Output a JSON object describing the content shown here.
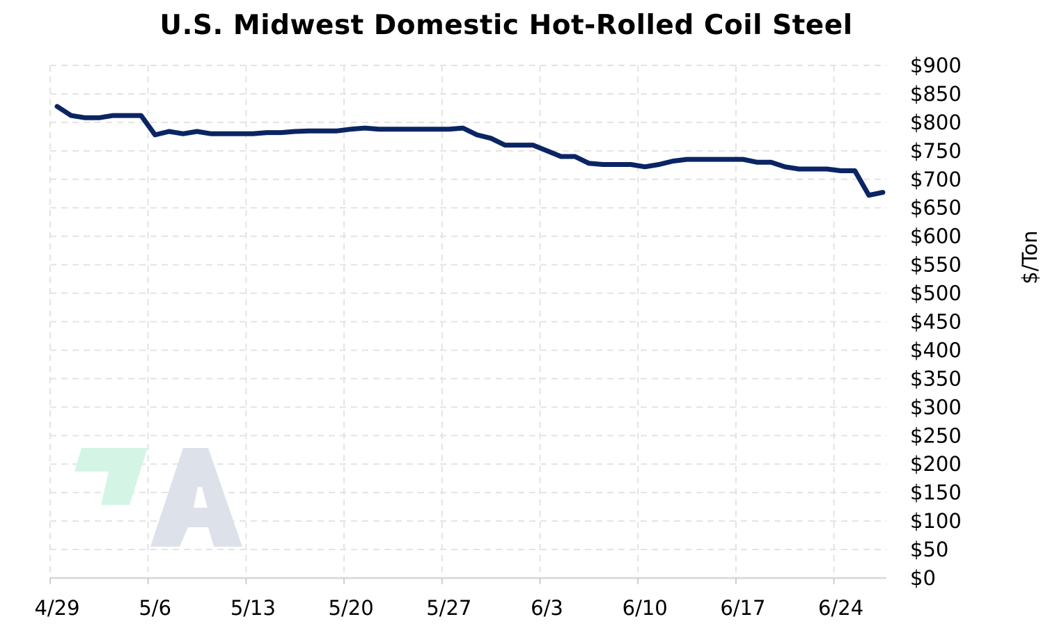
{
  "chart_data": {
    "type": "line",
    "title": "U.S. Midwest Domestic Hot-Rolled Coil Steel",
    "xlabel": "",
    "ylabel": "$/Ton",
    "y_axis_position": "right",
    "ylim": [
      0,
      900
    ],
    "y_ticks": [
      0,
      50,
      100,
      150,
      200,
      250,
      300,
      350,
      400,
      450,
      500,
      550,
      600,
      650,
      700,
      750,
      800,
      850,
      900
    ],
    "y_tick_labels": [
      "$0",
      "$50",
      "$100",
      "$150",
      "$200",
      "$250",
      "$300",
      "$350",
      "$400",
      "$450",
      "$500",
      "$550",
      "$600",
      "$650",
      "$700",
      "$750",
      "$800",
      "$850",
      "$900"
    ],
    "x_tick_labels": [
      "4/29",
      "5/6",
      "5/13",
      "5/20",
      "5/27",
      "6/3",
      "6/10",
      "6/17",
      "6/24"
    ],
    "grid": true,
    "legend": "none",
    "line_color": "#0b2463",
    "series": [
      {
        "x": [
          "4/29",
          "4/30",
          "5/1",
          "5/2",
          "5/3",
          "5/4",
          "5/5",
          "5/6",
          "5/7",
          "5/8",
          "5/9",
          "5/10",
          "5/11",
          "5/12",
          "5/13",
          "5/14",
          "5/15",
          "5/16",
          "5/17",
          "5/18",
          "5/19",
          "5/20",
          "5/21",
          "5/22",
          "5/23",
          "5/24",
          "5/25",
          "5/26",
          "5/27",
          "5/28",
          "5/29",
          "5/30",
          "5/31",
          "6/1",
          "6/2",
          "6/3",
          "6/4",
          "6/5",
          "6/6",
          "6/7",
          "6/8",
          "6/9",
          "6/10",
          "6/11",
          "6/12",
          "6/13",
          "6/14",
          "6/15",
          "6/16",
          "6/17",
          "6/18",
          "6/19",
          "6/20",
          "6/21",
          "6/22",
          "6/23",
          "6/24",
          "6/25",
          "6/26",
          "6/27"
        ],
        "values": [
          828,
          812,
          808,
          808,
          812,
          812,
          812,
          778,
          784,
          780,
          784,
          780,
          780,
          780,
          780,
          782,
          782,
          784,
          785,
          785,
          785,
          788,
          790,
          788,
          788,
          788,
          788,
          788,
          788,
          790,
          778,
          772,
          760,
          760,
          760,
          750,
          740,
          740,
          728,
          726,
          726,
          726,
          722,
          726,
          732,
          735,
          735,
          735,
          735,
          735,
          730,
          730,
          722,
          718,
          718,
          718,
          715,
          715,
          672,
          677
        ]
      }
    ]
  },
  "watermark": {
    "icon": "ag-logo-watermark",
    "colors": [
      "#d4f5e6",
      "#dde1e9"
    ]
  }
}
